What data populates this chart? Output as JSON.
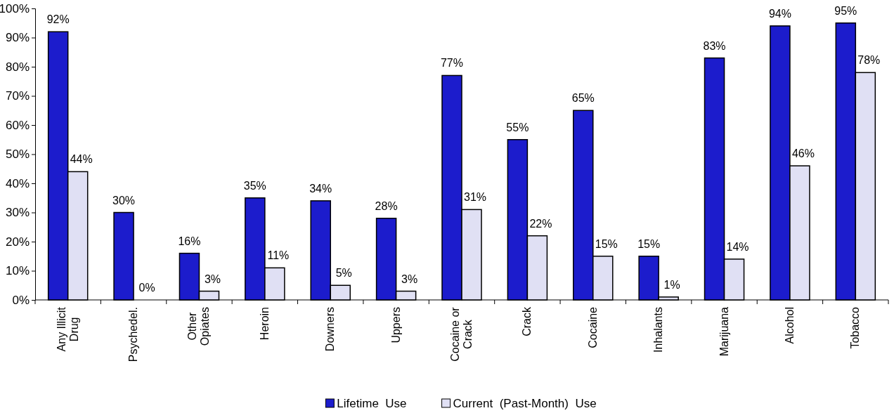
{
  "chart_data": {
    "type": "bar",
    "categories": [
      "Any Illicit Drug",
      "Psychedel.",
      "Other Opiates",
      "Heroin",
      "Downers",
      "Uppers",
      "Cocaine or Crack",
      "Crack",
      "Cocaine",
      "Inhalants",
      "Marijuana",
      "Alcohol",
      "Tobacco"
    ],
    "series": [
      {
        "name": "Lifetime  Use",
        "color": "#1c1ccc",
        "values": [
          92,
          30,
          16,
          35,
          34,
          28,
          77,
          55,
          65,
          15,
          83,
          94,
          95
        ]
      },
      {
        "name": "Current  (Past-Month)  Use",
        "color": "#e0e0f4",
        "values": [
          44,
          0,
          3,
          11,
          5,
          3,
          31,
          22,
          15,
          1,
          14,
          46,
          78
        ]
      }
    ],
    "ylim": [
      0,
      100
    ],
    "yticks": [
      {
        "value": 0,
        "label": "0%"
      },
      {
        "value": 10,
        "label": "10%"
      },
      {
        "value": 20,
        "label": "20%"
      },
      {
        "value": 30,
        "label": "30%"
      },
      {
        "value": 40,
        "label": "40%"
      },
      {
        "value": 50,
        "label": "50%"
      },
      {
        "value": 60,
        "label": "60%"
      },
      {
        "value": 70,
        "label": "70%"
      },
      {
        "value": 80,
        "label": "80%"
      },
      {
        "value": 90,
        "label": "90%"
      },
      {
        "value": 100,
        "label": "100%"
      }
    ],
    "value_labels": [
      [
        "92%",
        "30%",
        "16%",
        "35%",
        "34%",
        "28%",
        "77%",
        "55%",
        "65%",
        "15%",
        "83%",
        "94%",
        "95%"
      ],
      [
        "44%",
        "0%",
        "3%",
        "11%",
        "5%",
        "3%",
        "31%",
        "22%",
        "15%",
        "1%",
        "14%",
        "46%",
        "78%"
      ]
    ],
    "grid": false,
    "legend": "bottom"
  }
}
